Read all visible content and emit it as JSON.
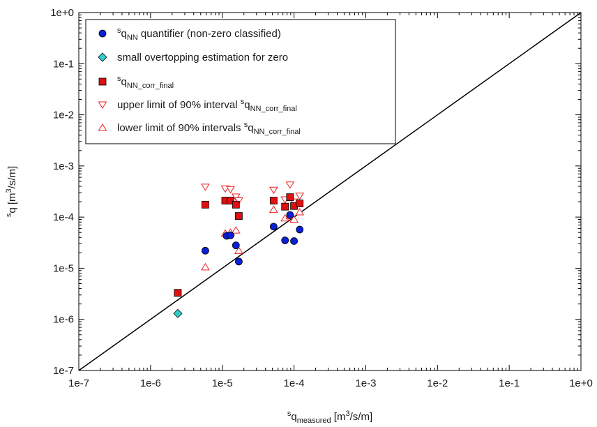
{
  "chart_data": {
    "type": "scatter",
    "x_scale": "log",
    "y_scale": "log",
    "xlim": [
      1e-07,
      1
    ],
    "ylim": [
      1e-07,
      1
    ],
    "grid": false,
    "legend_position": "top-left",
    "x_ticks": [
      {
        "value": 1e-07,
        "label": "1e-7"
      },
      {
        "value": 1e-06,
        "label": "1e-6"
      },
      {
        "value": 1e-05,
        "label": "1e-5"
      },
      {
        "value": 0.0001,
        "label": "1e-4"
      },
      {
        "value": 0.001,
        "label": "1e-3"
      },
      {
        "value": 0.01,
        "label": "1e-2"
      },
      {
        "value": 0.1,
        "label": "1e-1"
      },
      {
        "value": 1,
        "label": "1e+0"
      }
    ],
    "y_ticks": [
      {
        "value": 1e-07,
        "label": "1e-7"
      },
      {
        "value": 1e-06,
        "label": "1e-6"
      },
      {
        "value": 1e-05,
        "label": "1e-5"
      },
      {
        "value": 0.0001,
        "label": "1e-4"
      },
      {
        "value": 0.001,
        "label": "1e-3"
      },
      {
        "value": 0.01,
        "label": "1e-2"
      },
      {
        "value": 0.1,
        "label": "1e-1"
      },
      {
        "value": 1,
        "label": "1e+0"
      }
    ],
    "xlabel": {
      "sup": "s",
      "base": "q",
      "sub": "measured",
      "tail": " [m",
      "tail_sup": "3",
      "tail_end": "/s/m]"
    },
    "ylabel": {
      "sup": "s",
      "base": "q [m",
      "tail_sup": "3",
      "tail_end": "/s/m]"
    },
    "reference_line": {
      "from": [
        1e-07,
        1e-07
      ],
      "to": [
        1,
        1
      ],
      "color": "#000000"
    },
    "series": [
      {
        "id": "nn",
        "marker": "circle",
        "color": "#0b1fd6",
        "legend": {
          "sup": "s",
          "base": "q",
          "sub": "NN",
          "text": " quantifier (non-zero classified)"
        },
        "points": [
          [
            5.8e-06,
            2.2e-05
          ],
          [
            1.15e-05,
            4.3e-05
          ],
          [
            1.3e-05,
            4.4e-05
          ],
          [
            1.55e-05,
            2.8e-05
          ],
          [
            1.7e-05,
            1.35e-05
          ],
          [
            5.2e-05,
            6.5e-05
          ],
          [
            7.5e-05,
            3.5e-05
          ],
          [
            8.8e-05,
            0.00011
          ],
          [
            0.0001,
            3.4e-05
          ],
          [
            0.00012,
            5.7e-05
          ]
        ]
      },
      {
        "id": "small",
        "marker": "diamond",
        "color": "#33cccc",
        "legend": {
          "text": "small overtopping estimation for zero"
        },
        "points": [
          [
            2.4e-06,
            1.3e-06
          ]
        ]
      },
      {
        "id": "corr",
        "marker": "square",
        "color": "#dd1111",
        "legend": {
          "sup": "s",
          "base": "q",
          "sub": "NN_corr_final",
          "text": ""
        },
        "points": [
          [
            2.4e-06,
            3.3e-06
          ],
          [
            5.8e-06,
            0.000175
          ],
          [
            1.1e-05,
            0.00021
          ],
          [
            1.3e-05,
            0.00021
          ],
          [
            1.55e-05,
            0.000175
          ],
          [
            1.7e-05,
            0.000105
          ],
          [
            5.2e-05,
            0.00021
          ],
          [
            7.5e-05,
            0.00016
          ],
          [
            8.8e-05,
            0.000245
          ],
          [
            0.0001,
            0.000165
          ],
          [
            0.00012,
            0.000185
          ]
        ]
      },
      {
        "id": "upper",
        "marker": "triangle-down",
        "color": "#ee2222",
        "legend": {
          "text": "upper limit of 90% interval ",
          "sup": "s",
          "base": "q",
          "sub": "NN_corr_final"
        },
        "points": [
          [
            5.8e-06,
            0.00039
          ],
          [
            1.1e-05,
            0.00036
          ],
          [
            1.3e-05,
            0.00035
          ],
          [
            1.55e-05,
            0.00025
          ],
          [
            1.7e-05,
            0.00021
          ],
          [
            5.2e-05,
            0.00034
          ],
          [
            7.5e-05,
            0.00022
          ],
          [
            8.8e-05,
            0.00043
          ],
          [
            0.0001,
            0.0002
          ],
          [
            0.00012,
            0.00026
          ]
        ]
      },
      {
        "id": "lower",
        "marker": "triangle-up",
        "color": "#ee2222",
        "legend": {
          "text": "lower limit of 90% intervals ",
          "sup": "s",
          "base": "q",
          "sub": "NN_corr_final"
        },
        "points": [
          [
            5.8e-06,
            1.05e-05
          ],
          [
            1.1e-05,
            4.8e-05
          ],
          [
            1.3e-05,
            5e-05
          ],
          [
            1.55e-05,
            5.5e-05
          ],
          [
            1.7e-05,
            2.2e-05
          ],
          [
            5.2e-05,
            0.00014
          ],
          [
            7.5e-05,
            9.5e-05
          ],
          [
            8.8e-05,
            0.000105
          ],
          [
            0.0001,
            9e-05
          ],
          [
            0.00012,
            0.000125
          ]
        ]
      }
    ]
  }
}
